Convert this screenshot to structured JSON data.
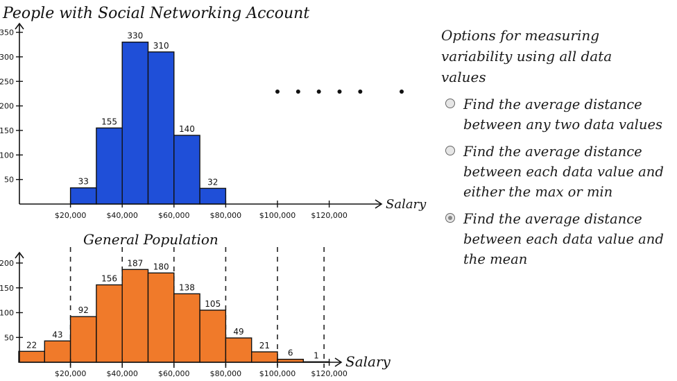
{
  "chart_data": [
    {
      "type": "bar",
      "title": "People with Social Networking Account",
      "xlabel": "Salary",
      "bin_edges": [
        20000,
        30000,
        40000,
        50000,
        60000,
        70000,
        80000
      ],
      "values": [
        33,
        155,
        330,
        310,
        140,
        32
      ],
      "value_labels": [
        "33",
        "155",
        "330",
        "310",
        "140",
        "32"
      ],
      "x_ticks": [
        "$20,000",
        "$40,000",
        "$60,000",
        "$80,000",
        "$100,000",
        "$120,000"
      ],
      "x_tick_values": [
        20000,
        40000,
        60000,
        80000,
        100000,
        120000
      ],
      "y_ticks": [
        "50",
        "100",
        "150",
        "200",
        "250",
        "300",
        "350"
      ],
      "y_tick_values": [
        50,
        100,
        150,
        200,
        250,
        300,
        350
      ],
      "ylim": [
        0,
        365
      ],
      "dots_x": [
        100000,
        108000,
        116000,
        124000,
        132000,
        148000
      ],
      "color": "#1f4fd8"
    },
    {
      "type": "bar",
      "title": "General Population",
      "xlabel": "Salary",
      "bin_edges": [
        0,
        10000,
        20000,
        30000,
        40000,
        50000,
        60000,
        70000,
        80000,
        90000,
        100000,
        110000,
        120000
      ],
      "values": [
        22,
        43,
        92,
        156,
        187,
        180,
        138,
        105,
        49,
        21,
        6,
        1
      ],
      "value_labels": [
        "22",
        "43",
        "92",
        "156",
        "187",
        "180",
        "138",
        "105",
        "49",
        "21",
        "6",
        "1"
      ],
      "x_ticks": [
        "$20,000",
        "$40,000",
        "$60,000",
        "$80,000",
        "$100,000",
        "$120,000"
      ],
      "x_tick_values": [
        20000,
        40000,
        60000,
        80000,
        100000,
        120000
      ],
      "y_ticks": [
        "50",
        "100",
        "150",
        "200"
      ],
      "y_tick_values": [
        50,
        100,
        150,
        200
      ],
      "ylim": [
        0,
        210
      ],
      "dashed_lines_x": [
        20000,
        40000,
        60000,
        80000,
        100000,
        118000
      ],
      "color": "#f07a2a"
    }
  ],
  "options_panel": {
    "title": "Options for measuring variability using all data values",
    "items": [
      {
        "label": "Find the average distance between any two data values",
        "selected": false
      },
      {
        "label": "Find the average distance between each data value and either the max or min",
        "selected": false
      },
      {
        "label": "Find the average distance between each data value and the mean",
        "selected": true
      }
    ]
  }
}
